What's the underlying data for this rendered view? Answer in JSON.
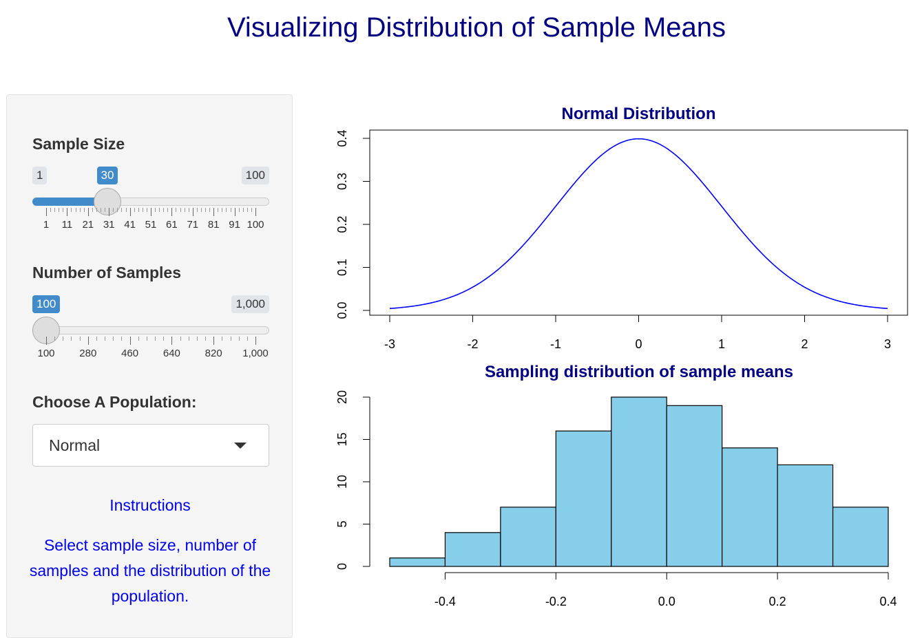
{
  "page": {
    "title": "Visualizing Distribution of Sample Means"
  },
  "sidebar": {
    "sample_size": {
      "label": "Sample Size",
      "min": 1,
      "max": 100,
      "value": 30,
      "min_label": "1",
      "max_label": "100",
      "value_label": "30",
      "grid_labels": [
        "1",
        "11",
        "21",
        "31",
        "41",
        "51",
        "61",
        "71",
        "81",
        "91",
        "100"
      ]
    },
    "num_samples": {
      "label": "Number of Samples",
      "min": 100,
      "max": 1000,
      "value": 100,
      "min_label": "100",
      "max_label": "1,000",
      "value_label": "100",
      "grid_labels": [
        "100",
        "280",
        "460",
        "640",
        "820",
        "1,000"
      ]
    },
    "population": {
      "label": "Choose A Population:",
      "selected": "Normal"
    },
    "instructions": {
      "heading": "Instructions",
      "text": "Select sample size, number of samples and the distribution of the population."
    }
  },
  "colors": {
    "title": "#000080",
    "slider_accent": "#428bca",
    "curve": "#0000ff",
    "histogram_fill": "#87ceeb",
    "instructions": "#0000ee"
  },
  "chart_data": [
    {
      "type": "line",
      "title": "Normal Distribution",
      "function": "standard normal density",
      "x_range": [
        -3,
        3
      ],
      "xlim": [
        -3,
        3
      ],
      "ylim": [
        0,
        0.4
      ],
      "x_ticks": [
        "-3",
        "-2",
        "-1",
        "0",
        "1",
        "2",
        "3"
      ],
      "y_ticks": [
        "0.0",
        "0.1",
        "0.2",
        "0.3",
        "0.4"
      ],
      "series": [
        {
          "color": "#0000ff"
        }
      ]
    },
    {
      "type": "bar",
      "title": "Sampling distribution of sample means",
      "bin_edges": [
        -0.5,
        -0.4,
        -0.3,
        -0.2,
        -0.1,
        0.0,
        0.1,
        0.2,
        0.3,
        0.4
      ],
      "values": [
        1,
        4,
        7,
        16,
        20,
        19,
        14,
        12,
        7
      ],
      "xlim": [
        -0.5,
        0.4
      ],
      "ylim": [
        0,
        20
      ],
      "x_ticks": [
        "-0.4",
        "-0.2",
        "0.0",
        "0.2",
        "0.4"
      ],
      "y_ticks": [
        "0",
        "5",
        "10",
        "15",
        "20"
      ]
    }
  ]
}
